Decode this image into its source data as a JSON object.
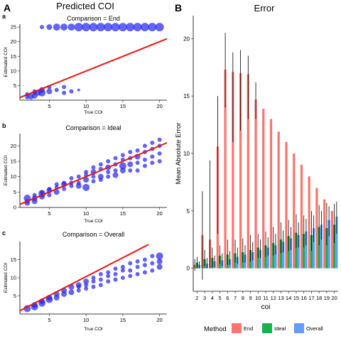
{
  "figure": {
    "panel_a_letter": "A",
    "panel_a_title": "Predicted COI",
    "panel_b_letter": "B",
    "panel_b_title": "Error"
  },
  "colors": {
    "points": "#2727f0",
    "identity_line": "#ee1111",
    "end": "#f8766d",
    "ideal": "#17b14a",
    "overall": "#619cff",
    "error_bar": "#000000"
  },
  "chart_data": [
    {
      "type": "scatter",
      "letter": "a",
      "title": "Comparison = End",
      "xlabel": "True COI",
      "ylabel": "Estimated COI",
      "xlim": [
        1,
        21
      ],
      "ylim": [
        0,
        26
      ],
      "xticks": [
        5,
        10,
        15,
        20
      ],
      "yticks": [
        5,
        10,
        15,
        20,
        25
      ],
      "line": [
        [
          1,
          0.9
        ],
        [
          21,
          21
        ]
      ],
      "points": [
        [
          2,
          1.0,
          3
        ],
        [
          2,
          2.0,
          3
        ],
        [
          2.5,
          1.2,
          4
        ],
        [
          3,
          1.5,
          4
        ],
        [
          3,
          2.5,
          3
        ],
        [
          3,
          3.0,
          3
        ],
        [
          3.5,
          2.5,
          4
        ],
        [
          4,
          2.5,
          5
        ],
        [
          4,
          3.5,
          4
        ],
        [
          5,
          3.0,
          4
        ],
        [
          5,
          4.5,
          3
        ],
        [
          6,
          3.5,
          3
        ],
        [
          7,
          4.5,
          3
        ],
        [
          7,
          2.5,
          3
        ],
        [
          8,
          3.0,
          3
        ],
        [
          9,
          3.5,
          2
        ],
        [
          4,
          25,
          3
        ],
        [
          5,
          25,
          4
        ],
        [
          6,
          25,
          5
        ],
        [
          7,
          25,
          5
        ],
        [
          8,
          25,
          5
        ],
        [
          9,
          25,
          6
        ],
        [
          10,
          25,
          6
        ],
        [
          11,
          25,
          6
        ],
        [
          12,
          25,
          6
        ],
        [
          13,
          25,
          6
        ],
        [
          14,
          25,
          6
        ],
        [
          15,
          25,
          6
        ],
        [
          16,
          25,
          6
        ],
        [
          17,
          25,
          6
        ],
        [
          18,
          25,
          6
        ],
        [
          19,
          25,
          6
        ],
        [
          20,
          25,
          6
        ]
      ]
    },
    {
      "type": "scatter",
      "letter": "b",
      "title": "Comparison = Ideal",
      "xlabel": "True COI",
      "ylabel": "Estimated COI",
      "xlim": [
        1,
        21
      ],
      "ylim": [
        0,
        24
      ],
      "xticks": [
        5,
        10,
        15,
        20
      ],
      "yticks": [
        0,
        5,
        10,
        15,
        20
      ],
      "line": [
        [
          1,
          1.0
        ],
        [
          21,
          21
        ]
      ],
      "points": [
        [
          2,
          1.5,
          4
        ],
        [
          2,
          2.0,
          3
        ],
        [
          2,
          3.0,
          5
        ],
        [
          3,
          2.0,
          4
        ],
        [
          3,
          3.0,
          4
        ],
        [
          3,
          4.0,
          3
        ],
        [
          4,
          3.5,
          4
        ],
        [
          4,
          4.5,
          5
        ],
        [
          4,
          5.0,
          3
        ],
        [
          5,
          4.0,
          3
        ],
        [
          5,
          5.5,
          4
        ],
        [
          5,
          6.0,
          3
        ],
        [
          6,
          5.0,
          4
        ],
        [
          6,
          6.5,
          3
        ],
        [
          6,
          7.5,
          3
        ],
        [
          7,
          6.0,
          3
        ],
        [
          7,
          7.5,
          4
        ],
        [
          7,
          8.0,
          3
        ],
        [
          8,
          7.0,
          3
        ],
        [
          8,
          8.0,
          3
        ],
        [
          8,
          9.5,
          3
        ],
        [
          9,
          7.0,
          4
        ],
        [
          9,
          8.0,
          3
        ],
        [
          9,
          10.0,
          3
        ],
        [
          10,
          6.5,
          5
        ],
        [
          10,
          9.0,
          4
        ],
        [
          10,
          10.5,
          3
        ],
        [
          10,
          11.5,
          3
        ],
        [
          11,
          8.5,
          3
        ],
        [
          11,
          10.0,
          3
        ],
        [
          11,
          11.5,
          4
        ],
        [
          11,
          13.0,
          3
        ],
        [
          12,
          9.0,
          3
        ],
        [
          12,
          10.0,
          4
        ],
        [
          12,
          12.5,
          3
        ],
        [
          12,
          14.0,
          3
        ],
        [
          13,
          10.0,
          3
        ],
        [
          13,
          11.5,
          3
        ],
        [
          13,
          13.0,
          4
        ],
        [
          13,
          15.0,
          3
        ],
        [
          14,
          10.5,
          4
        ],
        [
          14,
          12.0,
          3
        ],
        [
          14,
          14.0,
          3
        ],
        [
          14,
          16.0,
          3
        ],
        [
          15,
          12.0,
          4
        ],
        [
          15,
          13.5,
          5
        ],
        [
          15,
          15.5,
          3
        ],
        [
          15,
          17.0,
          3
        ],
        [
          16,
          12.0,
          3
        ],
        [
          16,
          14.0,
          4
        ],
        [
          16,
          16.0,
          3
        ],
        [
          16,
          18.0,
          3
        ],
        [
          17,
          12.0,
          3
        ],
        [
          17,
          14.5,
          3
        ],
        [
          17,
          16.5,
          4
        ],
        [
          17,
          18.5,
          3
        ],
        [
          18,
          13.5,
          3
        ],
        [
          18,
          15.5,
          3
        ],
        [
          18,
          18.0,
          3
        ],
        [
          18,
          20.0,
          3
        ],
        [
          19,
          14.5,
          3
        ],
        [
          19,
          16.5,
          3
        ],
        [
          19,
          19.0,
          3
        ],
        [
          19,
          21.0,
          3
        ],
        [
          20,
          15.0,
          3
        ],
        [
          20,
          17.5,
          3
        ],
        [
          20,
          20.0,
          3
        ],
        [
          20,
          22.0,
          3
        ]
      ]
    },
    {
      "type": "scatter",
      "letter": "c",
      "title": "Comparison = Overall",
      "xlabel": "True COI",
      "ylabel": "Estimated COI",
      "xlim": [
        1,
        21
      ],
      "ylim": [
        0,
        20
      ],
      "xticks": [
        5,
        10,
        15,
        20
      ],
      "yticks": [
        5,
        10,
        15
      ],
      "line": [
        [
          1,
          0.9
        ],
        [
          18.5,
          19.2
        ]
      ],
      "points": [
        [
          2,
          1.5,
          5
        ],
        [
          3,
          2.0,
          5
        ],
        [
          3,
          2.5,
          4
        ],
        [
          4,
          3.0,
          5
        ],
        [
          4,
          3.5,
          4
        ],
        [
          5,
          4.0,
          5
        ],
        [
          5,
          4.5,
          4
        ],
        [
          6,
          4.5,
          4
        ],
        [
          6,
          5.5,
          4
        ],
        [
          7,
          5.5,
          4
        ],
        [
          7,
          6.5,
          4
        ],
        [
          8,
          6.0,
          4
        ],
        [
          8,
          7.5,
          4
        ],
        [
          9,
          6.5,
          3
        ],
        [
          9,
          7.5,
          3
        ],
        [
          9,
          8.0,
          4
        ],
        [
          10,
          7.0,
          3
        ],
        [
          10,
          8.0,
          3
        ],
        [
          10,
          9.0,
          4
        ],
        [
          11,
          7.5,
          3
        ],
        [
          11,
          9.0,
          3
        ],
        [
          11,
          10.0,
          3
        ],
        [
          12,
          8.0,
          3
        ],
        [
          12,
          9.5,
          3
        ],
        [
          12,
          11.0,
          3
        ],
        [
          13,
          9.0,
          3
        ],
        [
          13,
          10.5,
          3
        ],
        [
          13,
          11.5,
          3
        ],
        [
          14,
          9.5,
          3
        ],
        [
          14,
          11.0,
          3
        ],
        [
          14,
          12.5,
          3
        ],
        [
          15,
          10.0,
          3
        ],
        [
          15,
          12.0,
          3
        ],
        [
          15,
          13.0,
          3
        ],
        [
          16,
          10.5,
          3
        ],
        [
          16,
          12.0,
          3
        ],
        [
          16,
          14.0,
          3
        ],
        [
          17,
          11.0,
          3
        ],
        [
          17,
          13.0,
          3
        ],
        [
          17,
          14.5,
          3
        ],
        [
          18,
          11.5,
          3
        ],
        [
          18,
          13.5,
          3
        ],
        [
          18,
          15.0,
          3
        ],
        [
          19,
          12.0,
          3
        ],
        [
          19,
          14.0,
          3
        ],
        [
          19,
          16.0,
          3
        ],
        [
          20,
          13.0,
          4
        ],
        [
          20,
          14.5,
          4
        ],
        [
          20,
          16.0,
          5
        ]
      ]
    },
    {
      "type": "bar",
      "title": "Error",
      "xlabel": "coi",
      "ylabel": "Mean Absolute Error",
      "ylim": [
        -2,
        22
      ],
      "yticks": [
        0,
        5,
        10,
        15,
        20
      ],
      "categories": [
        "2",
        "3",
        "4",
        "5",
        "6",
        "7",
        "8",
        "9",
        "10",
        "11",
        "12",
        "13",
        "14",
        "15",
        "16",
        "17",
        "18",
        "19",
        "20"
      ],
      "legend_title": "Method",
      "legend_position": "bottom",
      "series": [
        {
          "name": "End",
          "color": "#f8766d",
          "values": [
            0.3,
            2.9,
            2.5,
            10.6,
            17.3,
            17.1,
            17.0,
            16.9,
            14.7,
            13.9,
            13.0,
            11.9,
            11.0,
            10.0,
            9.0,
            8.0,
            7.0,
            6.0,
            5.0
          ],
          "lo": [
            -0.2,
            -1.0,
            0.0,
            3.0,
            14.0,
            11.0,
            12.0,
            13.0,
            13.0,
            null,
            null,
            null,
            null,
            null,
            null,
            null,
            null,
            null,
            null
          ],
          "hi": [
            0.8,
            6.7,
            9.4,
            15.0,
            20.5,
            18.8,
            19.0,
            18.5,
            16.2,
            null,
            null,
            null,
            null,
            null,
            null,
            null,
            null,
            null,
            null
          ]
        },
        {
          "name": "Ideal",
          "color": "#17b14a",
          "values": [
            0.5,
            0.8,
            0.9,
            1.1,
            1.2,
            1.3,
            1.4,
            1.6,
            1.8,
            2.0,
            2.2,
            2.5,
            2.8,
            3.1,
            3.0,
            2.9,
            3.6,
            3.5,
            3.8
          ],
          "lo": [
            0.0,
            0.2,
            0.1,
            0.4,
            0.3,
            0.5,
            0.5,
            0.6,
            0.9,
            1.0,
            1.1,
            1.3,
            1.5,
            1.8,
            1.8,
            1.5,
            2.0,
            2.0,
            2.2
          ],
          "hi": [
            1.0,
            1.6,
            1.8,
            2.0,
            2.5,
            2.5,
            2.6,
            2.9,
            3.0,
            3.2,
            3.6,
            4.0,
            4.2,
            4.7,
            4.6,
            5.0,
            5.5,
            5.7,
            5.6
          ]
        },
        {
          "name": "Overall",
          "color": "#619cff",
          "values": [
            0.3,
            0.4,
            0.6,
            0.7,
            0.8,
            1.0,
            1.2,
            1.4,
            1.6,
            1.8,
            2.0,
            2.3,
            2.6,
            2.9,
            3.2,
            3.5,
            3.8,
            4.2,
            4.5
          ],
          "lo": [
            0.0,
            0.0,
            0.1,
            0.2,
            0.3,
            0.4,
            0.5,
            0.7,
            0.9,
            1.1,
            1.2,
            1.4,
            1.6,
            1.8,
            2.0,
            2.3,
            2.5,
            2.8,
            3.0
          ],
          "hi": [
            0.6,
            0.9,
            1.1,
            1.3,
            1.5,
            1.8,
            2.0,
            2.3,
            2.5,
            2.7,
            3.0,
            3.3,
            3.6,
            4.0,
            4.3,
            4.6,
            5.0,
            5.4,
            5.8
          ]
        }
      ]
    }
  ]
}
